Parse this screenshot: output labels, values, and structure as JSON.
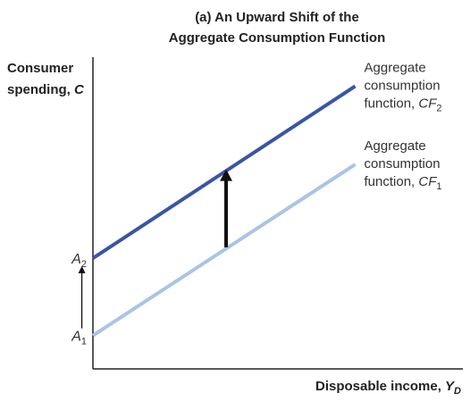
{
  "title_line1": "(a) An Upward Shift of the",
  "title_line2": "Aggregate Consumption Function",
  "y_axis_title_line1": "Consumer",
  "y_axis_title_line2": "spending, ",
  "y_axis_symbol": "C",
  "x_axis_title": "Disposable income, ",
  "x_axis_symbol": "Y",
  "x_axis_subscript": "D",
  "colors": {
    "cf2": "#3a55a4",
    "cf1": "#a9c4e6",
    "axis": "#222222",
    "arrow": "#111111"
  },
  "chart_data": {
    "type": "line",
    "title": "(a) An Upward Shift of the Aggregate Consumption Function",
    "xlabel": "Disposable income, Y_D",
    "ylabel": "Consumer spending, C",
    "xlim": [
      0,
      100
    ],
    "ylim": [
      0,
      100
    ],
    "grid": false,
    "series": [
      {
        "name": "Aggregate consumption function, CF2",
        "label_lines": [
          "Aggregate",
          "consumption",
          "function, "
        ],
        "symbol": "CF",
        "subscript": "2",
        "intercept_label": "A",
        "intercept_subscript": "2",
        "x": [
          0,
          70.9
        ],
        "y": [
          35.5,
          90.7
        ]
      },
      {
        "name": "Aggregate consumption function, CF1",
        "label_lines": [
          "Aggregate",
          "consumption",
          "function, "
        ],
        "symbol": "CF",
        "subscript": "1",
        "intercept_label": "A",
        "intercept_subscript": "1",
        "x": [
          0,
          70.9
        ],
        "y": [
          10.7,
          65.6
        ]
      }
    ],
    "annotations": [
      {
        "type": "shift-arrow",
        "x": 36,
        "y_from": 39,
        "y_to": 64
      },
      {
        "type": "intercept-arrow",
        "x": -3,
        "y_from": 13,
        "y_to": 33
      }
    ]
  }
}
